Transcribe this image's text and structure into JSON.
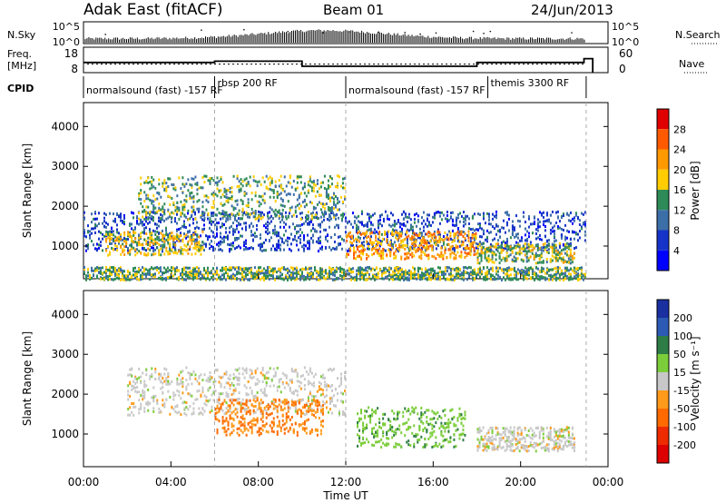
{
  "header": {
    "station": "Adak East (fitACF)",
    "beam": "Beam 01",
    "date": "24/Jun/2013"
  },
  "status_panels": {
    "nsky_label": "N.Sky",
    "nsearch_label": "N.Search",
    "nsky_ticks": [
      "10^5",
      "10^0"
    ],
    "nsky_right_ticks": [
      "10^5",
      "10^0"
    ],
    "freq_label_line1": "Freq.",
    "freq_label_line2": "[MHz]",
    "freq_ticks": [
      "18",
      "8"
    ],
    "nave_label": "Nave",
    "nave_ticks": [
      "60",
      "0"
    ],
    "cpid_label": "CPID",
    "cpid_segments": [
      {
        "name": "normalsound (fast) -157",
        "mode": "RF",
        "start_h": 0.0,
        "end_h": 6.0
      },
      {
        "name": "rbsp 200",
        "mode": "RF",
        "start_h": 6.0,
        "end_h": 12.0
      },
      {
        "name": "normalsound (fast) -157",
        "mode": "RF",
        "start_h": 12.0,
        "end_h": 18.5
      },
      {
        "name": "themis 3300",
        "mode": "RF",
        "start_h": 18.5,
        "end_h": 23.0
      }
    ],
    "freq_steps": [
      {
        "start_h": 0.0,
        "end_h": 6.0,
        "mhz": 12.0
      },
      {
        "start_h": 6.0,
        "end_h": 10.0,
        "mhz": 12.5
      },
      {
        "start_h": 10.0,
        "end_h": 18.0,
        "mhz": 10.5
      },
      {
        "start_h": 18.0,
        "end_h": 22.9,
        "mhz": 12.0
      },
      {
        "start_h": 22.9,
        "end_h": 23.3,
        "mhz": 13.5
      }
    ],
    "nave_level": 20
  },
  "colorbars": {
    "power": {
      "label": "Power [dB]",
      "ticks": [
        "28",
        "24",
        "20",
        "16",
        "12",
        "8",
        "4"
      ],
      "colors": [
        "#e00000",
        "#ff5a00",
        "#ff9900",
        "#ffcc00",
        "#2e8b57",
        "#3c6ea8",
        "#1533c8",
        "#0000ff"
      ]
    },
    "velocity": {
      "label": "Velocity [m s⁻¹]",
      "ticks": [
        "200",
        "100",
        "50",
        "15",
        "-15",
        "-50",
        "-100",
        "-200"
      ],
      "colors": [
        "#1a2fa0",
        "#2c5ab5",
        "#2e7d46",
        "#7ccd3a",
        "#c8c8c8",
        "#ff9a1a",
        "#ff6a00",
        "#ee2a00",
        "#dd0000"
      ]
    }
  },
  "chart_data": [
    {
      "type": "heatmap",
      "title": "",
      "quantity": "Power [dB]",
      "xlabel": "Time UT",
      "ylabel": "Slant Range [km]",
      "xlim_hours": [
        0,
        24
      ],
      "ylim_km": [
        180,
        4600
      ],
      "x_tick_labels": [
        "00:00",
        "04:00",
        "08:00",
        "12:00",
        "16:00",
        "20:00",
        "00:00"
      ],
      "y_tick_labels": [
        "1000",
        "2000",
        "3000",
        "4000"
      ],
      "features": [
        {
          "feature": "near-range ground scatter",
          "t_start_h": 0.0,
          "t_end_h": 23.0,
          "range_km": [
            180,
            500
          ],
          "value_db": 14
        },
        {
          "feature": "band 1",
          "t_start_h": 0.0,
          "t_end_h": 23.0,
          "range_km": [
            900,
            1900
          ],
          "value_db": 8
        },
        {
          "feature": "morning patch",
          "t_start_h": 1.0,
          "t_end_h": 5.5,
          "range_km": [
            800,
            1400
          ],
          "value_db": 18
        },
        {
          "feature": "upper band",
          "t_start_h": 2.5,
          "t_end_h": 12.0,
          "range_km": [
            1700,
            2800
          ],
          "value_db": 14
        },
        {
          "feature": "descending arc",
          "t_start_h": 12.0,
          "t_end_h": 18.0,
          "range_km": [
            700,
            1400
          ],
          "value_db": 22
        },
        {
          "feature": "evening patch",
          "t_start_h": 18.0,
          "t_end_h": 22.5,
          "range_km": [
            600,
            1100
          ],
          "value_db": 16
        }
      ]
    },
    {
      "type": "heatmap",
      "title": "",
      "quantity": "Velocity [m s⁻¹]",
      "xlabel": "Time UT",
      "ylabel": "Slant Range [km]",
      "xlim_hours": [
        0,
        24
      ],
      "ylim_km": [
        180,
        4600
      ],
      "x_tick_labels": [
        "00:00",
        "04:00",
        "08:00",
        "12:00",
        "16:00",
        "20:00",
        "00:00"
      ],
      "y_tick_labels": [
        "1000",
        "2000",
        "3000",
        "4000"
      ],
      "features": [
        {
          "feature": "ground scatter (grey)",
          "t_start_h": 2.0,
          "t_end_h": 12.0,
          "range_km": [
            1500,
            2700
          ],
          "value_ms": 0
        },
        {
          "feature": "afternoon ionospheric arc",
          "t_start_h": 12.5,
          "t_end_h": 17.5,
          "range_km": [
            700,
            1700
          ],
          "value_ms": 40
        },
        {
          "feature": "evening ground scatter",
          "t_start_h": 18.0,
          "t_end_h": 22.5,
          "range_km": [
            600,
            1200
          ],
          "value_ms": 0
        },
        {
          "feature": "orange flows",
          "t_start_h": 6.0,
          "t_end_h": 11.0,
          "range_km": [
            1000,
            1900
          ],
          "value_ms": -50
        }
      ]
    }
  ]
}
